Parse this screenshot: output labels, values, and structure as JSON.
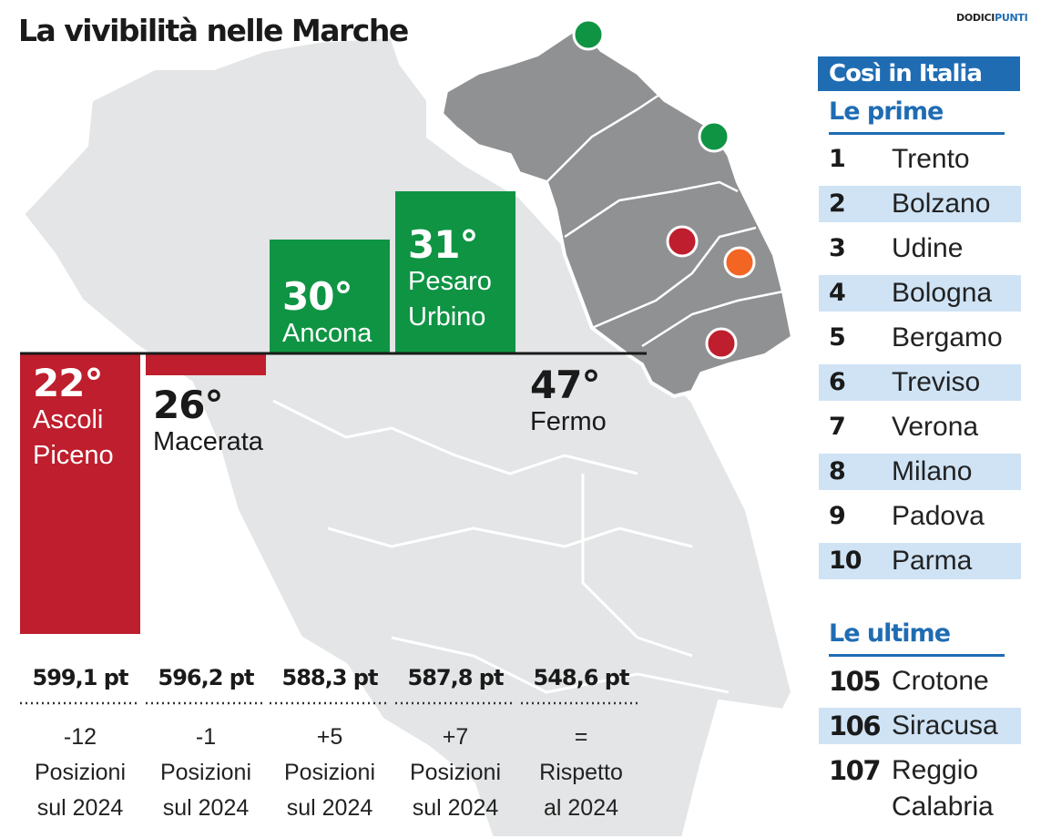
{
  "header": {
    "title": "La vivibilità nelle Marche",
    "brand_part1": "DODICI",
    "brand_part2": "PUNTI"
  },
  "chart_data": {
    "type": "bar",
    "title": "La vivibilità nelle Marche",
    "note": "Rank position in national quality-of-life ranking (bar grows with a better rank)",
    "categories": [
      "Ascoli Piceno",
      "Macerata",
      "Ancona",
      "Pesaro Urbino",
      "Fermo"
    ],
    "values": [
      22,
      26,
      30,
      31,
      47
    ],
    "rank_labels": [
      "22°",
      "26°",
      "30°",
      "31°",
      "47°"
    ],
    "name_lines": [
      [
        "Ascoli",
        "Piceno"
      ],
      [
        "Macerata"
      ],
      [
        "Ancona"
      ],
      [
        "Pesaro",
        "Urbino"
      ],
      [
        "Fermo"
      ]
    ],
    "points": [
      "599,1 pt",
      "596,2 pt",
      "588,3 pt",
      "587,8 pt",
      "548,6 pt"
    ],
    "changes": [
      [
        "-12",
        "Posizioni",
        "sul 2024"
      ],
      [
        "-1",
        "Posizioni",
        "sul 2024"
      ],
      [
        "+5",
        "Posizioni",
        "sul 2024"
      ],
      [
        "+7",
        "Posizioni",
        "sul 2024"
      ],
      [
        "=",
        "Rispetto",
        "al 2024"
      ]
    ],
    "bar_colors": [
      "#be1e2d",
      "#be1e2d",
      "#0f9444",
      "#0f9444",
      "#ffffff"
    ],
    "map_dot_colors": [
      "#0f9444",
      "#0f9444",
      "#be1e2d",
      "#f26522",
      "#be1e2d"
    ]
  },
  "colors": {
    "red": "#be1e2d",
    "green": "#0f9444",
    "orange": "#f26522",
    "blue": "#1f6cb3",
    "stripe": "#cfe3f5"
  },
  "italia": {
    "title": "Così in Italia",
    "top_heading": "Le prime",
    "top": [
      {
        "num": "1",
        "city": "Trento"
      },
      {
        "num": "2",
        "city": "Bolzano"
      },
      {
        "num": "3",
        "city": "Udine"
      },
      {
        "num": "4",
        "city": "Bologna"
      },
      {
        "num": "5",
        "city": "Bergamo"
      },
      {
        "num": "6",
        "city": "Treviso"
      },
      {
        "num": "7",
        "city": "Verona"
      },
      {
        "num": "8",
        "city": "Milano"
      },
      {
        "num": "9",
        "city": "Padova"
      },
      {
        "num": "10",
        "city": "Parma"
      }
    ],
    "bottom_heading": "Le ultime",
    "bottom": [
      {
        "num": "105",
        "city": "Crotone"
      },
      {
        "num": "106",
        "city": "Siracusa"
      },
      {
        "num": "107",
        "city": "Reggio Calabria"
      }
    ]
  }
}
